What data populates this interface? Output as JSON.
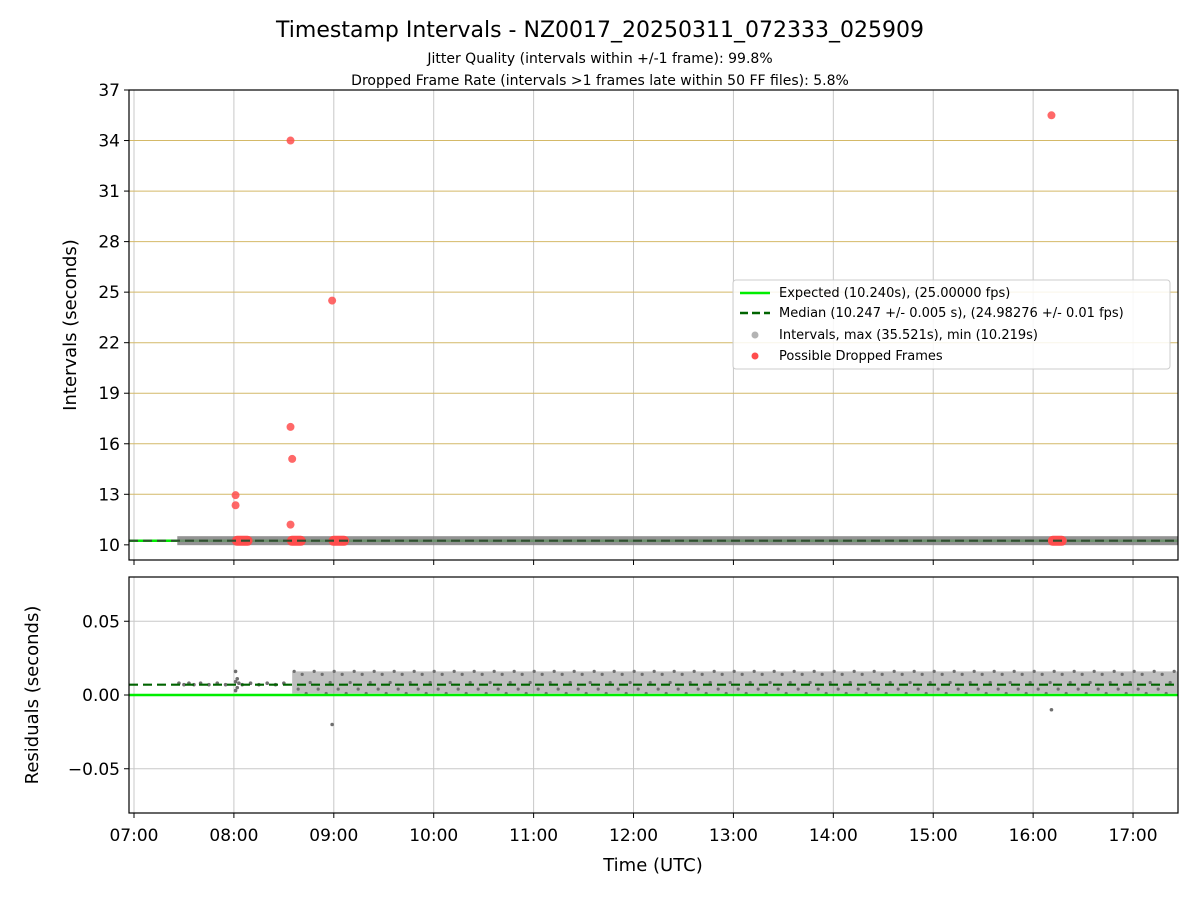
{
  "figure": {
    "title": "Timestamp Intervals - NZ0017_20250311_072333_025909",
    "subtitle_1": "Jitter Quality (intervals within +/-1 frame): 99.8%",
    "subtitle_2": "Dropped Frame Rate (intervals >1 frames late within 50 FF files): 5.8%"
  },
  "chart_data": [
    {
      "type": "scatter",
      "ylabel": "Intervals (seconds)",
      "ylim": [
        9.1,
        37
      ],
      "yticks": [
        10,
        13,
        16,
        19,
        22,
        25,
        28,
        31,
        34,
        37
      ],
      "ytick_labels": [
        "10",
        "13",
        "16",
        "19",
        "22",
        "25",
        "28",
        "31",
        "34",
        "37"
      ],
      "xlim_hours": [
        6.95,
        17.45
      ],
      "grid": "both",
      "legend_position": "right",
      "legend": {
        "expected": "Expected (10.240s), (25.00000 fps)",
        "median": "Median (10.247 +/- 0.005 s), (24.98276 +/- 0.01 fps)",
        "intervals": "Intervals, max (35.521s), min (10.219s)",
        "dropped": "Possible Dropped Frames"
      },
      "expected_value": 10.24,
      "median_value": 10.247,
      "intervals_band": {
        "x_start": "07:26",
        "x_end": "17:27",
        "value": 10.247
      },
      "dropped_points": [
        {
          "x": "08:01",
          "y": 12.95
        },
        {
          "x": "08:01",
          "y": 12.35
        },
        {
          "x": "08:34",
          "y": 34.0
        },
        {
          "x": "08:34",
          "y": 17.0
        },
        {
          "x": "08:35",
          "y": 15.1
        },
        {
          "x": "08:34",
          "y": 11.2
        },
        {
          "x": "08:59",
          "y": 24.5
        },
        {
          "x": "16:11",
          "y": 35.5
        }
      ],
      "dropped_clusters": [
        {
          "x_start": "08:00",
          "x_end": "08:10",
          "y": 10.24
        },
        {
          "x_start": "08:33",
          "x_end": "08:42",
          "y": 10.24
        },
        {
          "x_start": "08:58",
          "x_end": "09:08",
          "y": 10.24
        },
        {
          "x_start": "16:10",
          "x_end": "16:19",
          "y": 10.24
        }
      ]
    },
    {
      "type": "scatter",
      "ylabel": "Residuals (seconds)",
      "xlabel": "Time (UTC)",
      "ylim": [
        -0.08,
        0.08
      ],
      "yticks": [
        0.05,
        0.0,
        -0.05
      ],
      "ytick_labels": [
        "0.05",
        "0.00",
        "−0.05"
      ],
      "xticks": [
        "07:00",
        "08:00",
        "09:00",
        "10:00",
        "11:00",
        "12:00",
        "13:00",
        "14:00",
        "15:00",
        "16:00",
        "17:00"
      ],
      "xlim_hours": [
        6.95,
        17.45
      ],
      "expected_residual": 0.0,
      "median_residual": 0.007,
      "dense_region": {
        "x_start": "08:35",
        "x_end": "17:27",
        "y_low": 0.001,
        "y_high": 0.016
      },
      "sparse_points": [
        {
          "x": "07:27",
          "y": 0.008
        },
        {
          "x": "07:30",
          "y": 0.007
        },
        {
          "x": "07:33",
          "y": 0.008
        },
        {
          "x": "07:36",
          "y": 0.007
        },
        {
          "x": "07:40",
          "y": 0.008
        },
        {
          "x": "07:45",
          "y": 0.007
        },
        {
          "x": "07:50",
          "y": 0.008
        },
        {
          "x": "07:55",
          "y": 0.007
        },
        {
          "x": "08:01",
          "y": 0.016
        },
        {
          "x": "08:02",
          "y": 0.011
        },
        {
          "x": "08:01",
          "y": 0.009
        },
        {
          "x": "08:02",
          "y": 0.005
        },
        {
          "x": "08:01",
          "y": 0.003
        },
        {
          "x": "08:03",
          "y": 0.008
        },
        {
          "x": "08:05",
          "y": 0.007
        },
        {
          "x": "08:10",
          "y": 0.008
        },
        {
          "x": "08:15",
          "y": 0.007
        },
        {
          "x": "08:20",
          "y": 0.008
        },
        {
          "x": "08:25",
          "y": 0.007
        },
        {
          "x": "08:30",
          "y": 0.008
        },
        {
          "x": "08:59",
          "y": -0.02
        },
        {
          "x": "16:11",
          "y": -0.01
        }
      ]
    }
  ],
  "colors": {
    "expected": "#00ee00",
    "median": "#006400",
    "intervals": "#808080",
    "dropped": "#ff4d4d",
    "ygrid_top": "#d4b968",
    "grid": "#c8c8c8"
  }
}
